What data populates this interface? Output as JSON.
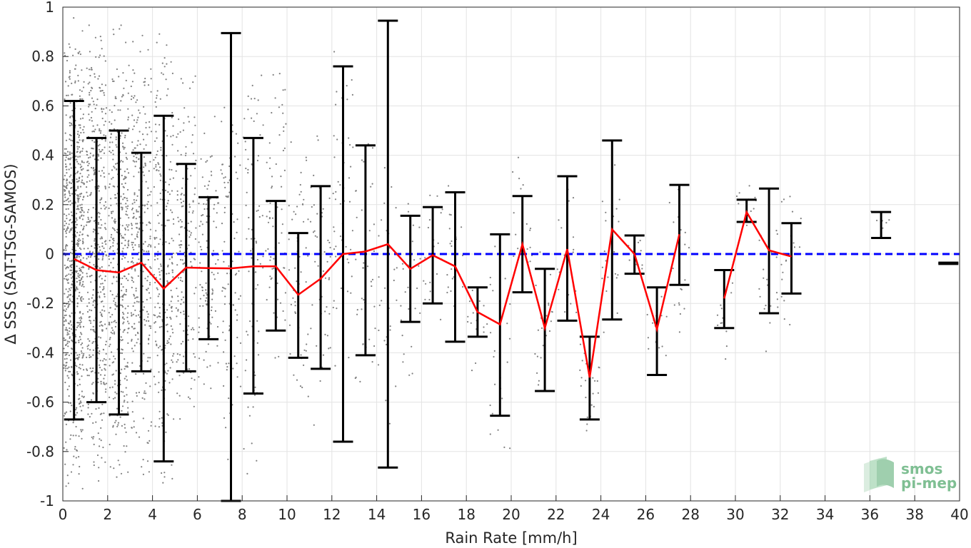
{
  "chart_data": {
    "type": "scatter",
    "xlabel": "Rain Rate [mm/h]",
    "ylabel": "Δ SSS (SAT-TSG-SAMOS)",
    "xlim": [
      0,
      40
    ],
    "ylim": [
      -1,
      1
    ],
    "xticks": [
      0,
      2,
      4,
      6,
      8,
      10,
      12,
      14,
      16,
      18,
      20,
      22,
      24,
      26,
      28,
      30,
      32,
      34,
      36,
      38,
      40
    ],
    "yticks": [
      -1,
      -0.8,
      -0.6,
      -0.4,
      -0.2,
      0,
      0.2,
      0.4,
      0.6,
      0.8,
      1
    ],
    "ytick_labels": [
      "-1",
      "-0.8",
      "-0.6",
      "-0.4",
      "-0.2",
      "0",
      "0.2",
      "0.4",
      "0.6",
      "0.8",
      "1"
    ],
    "grid": true,
    "reference_line": {
      "y": 0,
      "style": "dashed",
      "color": "#0000ff"
    },
    "scatter_color": "#808080",
    "mean_line_color": "#ff0000",
    "errorbar_color": "#000000",
    "mean_series": {
      "x": [
        0.5,
        1.5,
        2.5,
        3.5,
        4.5,
        5.5,
        6.5,
        7.5,
        8.5,
        9.5,
        10.5,
        11.5,
        12.5,
        13.5,
        14.5,
        15.5,
        16.5,
        17.5,
        18.5,
        19.5,
        20.5,
        21.5,
        22.5,
        23.5,
        24.5,
        25.5,
        26.5,
        27.5
      ],
      "y": [
        -0.02,
        -0.065,
        -0.075,
        -0.035,
        -0.14,
        -0.055,
        -0.057,
        -0.058,
        -0.05,
        -0.05,
        -0.165,
        -0.1,
        0.0,
        0.01,
        0.04,
        -0.06,
        -0.005,
        -0.05,
        -0.235,
        -0.285,
        0.04,
        -0.3,
        0.02,
        -0.5,
        0.1,
        0.0,
        -0.305,
        0.08
      ]
    },
    "mean_series_2": {
      "x": [
        29.5,
        30.5,
        31.5,
        32.5
      ],
      "y": [
        -0.18,
        0.17,
        0.015,
        -0.01
      ]
    },
    "errorbars": [
      {
        "x": 0.5,
        "lo": -0.67,
        "hi": 0.62
      },
      {
        "x": 1.5,
        "lo": -0.6,
        "hi": 0.47
      },
      {
        "x": 2.5,
        "lo": -0.65,
        "hi": 0.5
      },
      {
        "x": 3.5,
        "lo": -0.475,
        "hi": 0.41
      },
      {
        "x": 4.5,
        "lo": -0.84,
        "hi": 0.56
      },
      {
        "x": 5.5,
        "lo": -0.475,
        "hi": 0.365
      },
      {
        "x": 6.5,
        "lo": -0.345,
        "hi": 0.23
      },
      {
        "x": 7.5,
        "lo": -1.0,
        "hi": 0.895
      },
      {
        "x": 8.5,
        "lo": -0.565,
        "hi": 0.47
      },
      {
        "x": 9.5,
        "lo": -0.31,
        "hi": 0.215
      },
      {
        "x": 10.5,
        "lo": -0.42,
        "hi": 0.085
      },
      {
        "x": 11.5,
        "lo": -0.465,
        "hi": 0.275
      },
      {
        "x": 12.5,
        "lo": -0.76,
        "hi": 0.76
      },
      {
        "x": 13.5,
        "lo": -0.41,
        "hi": 0.44
      },
      {
        "x": 14.5,
        "lo": -0.865,
        "hi": 0.945
      },
      {
        "x": 15.5,
        "lo": -0.275,
        "hi": 0.155
      },
      {
        "x": 16.5,
        "lo": -0.2,
        "hi": 0.19
      },
      {
        "x": 17.5,
        "lo": -0.355,
        "hi": 0.25
      },
      {
        "x": 18.5,
        "lo": -0.335,
        "hi": -0.135
      },
      {
        "x": 19.5,
        "lo": -0.655,
        "hi": 0.08
      },
      {
        "x": 20.5,
        "lo": -0.155,
        "hi": 0.235
      },
      {
        "x": 21.5,
        "lo": -0.555,
        "hi": -0.06
      },
      {
        "x": 22.5,
        "lo": -0.27,
        "hi": 0.315
      },
      {
        "x": 23.5,
        "lo": -0.67,
        "hi": -0.335
      },
      {
        "x": 24.5,
        "lo": -0.265,
        "hi": 0.46
      },
      {
        "x": 25.5,
        "lo": -0.08,
        "hi": 0.075
      },
      {
        "x": 26.5,
        "lo": -0.49,
        "hi": -0.135
      },
      {
        "x": 27.5,
        "lo": -0.125,
        "hi": 0.28
      },
      {
        "x": 29.5,
        "lo": -0.3,
        "hi": -0.065
      },
      {
        "x": 30.5,
        "lo": 0.13,
        "hi": 0.22
      },
      {
        "x": 31.5,
        "lo": -0.24,
        "hi": 0.265
      },
      {
        "x": 32.5,
        "lo": -0.16,
        "hi": 0.125
      },
      {
        "x": 36.5,
        "lo": 0.065,
        "hi": 0.17
      },
      {
        "x": 39.5,
        "lo": -0.04,
        "hi": -0.035
      }
    ],
    "scatter_columns": [
      {
        "x": 0.5,
        "lo": -1.0,
        "hi": 1.0,
        "n": 700
      },
      {
        "x": 1.5,
        "lo": -1.0,
        "hi": 1.0,
        "n": 450
      },
      {
        "x": 2.5,
        "lo": -1.0,
        "hi": 1.0,
        "n": 400
      },
      {
        "x": 3.5,
        "lo": -0.95,
        "hi": 1.0,
        "n": 300
      },
      {
        "x": 4.5,
        "lo": -1.0,
        "hi": 0.95,
        "n": 250
      },
      {
        "x": 5.5,
        "lo": -0.8,
        "hi": 0.85,
        "n": 160
      },
      {
        "x": 6.5,
        "lo": -0.6,
        "hi": 0.6,
        "n": 110
      },
      {
        "x": 7.5,
        "lo": -1.0,
        "hi": 0.8,
        "n": 90
      },
      {
        "x": 8.5,
        "lo": -0.95,
        "hi": 0.9,
        "n": 80
      },
      {
        "x": 9.5,
        "lo": -0.6,
        "hi": 0.85,
        "n": 70
      },
      {
        "x": 10.5,
        "lo": -0.65,
        "hi": 0.55,
        "n": 55
      },
      {
        "x": 11.5,
        "lo": -0.75,
        "hi": 0.6,
        "n": 50
      },
      {
        "x": 12.5,
        "lo": -0.55,
        "hi": 0.85,
        "n": 50
      },
      {
        "x": 13.5,
        "lo": -0.7,
        "hi": 0.6,
        "n": 40
      },
      {
        "x": 14.5,
        "lo": -0.7,
        "hi": 0.6,
        "n": 30
      },
      {
        "x": 15.5,
        "lo": -0.58,
        "hi": 0.3,
        "n": 25
      },
      {
        "x": 16.5,
        "lo": -0.45,
        "hi": 0.35,
        "n": 20
      },
      {
        "x": 17.5,
        "lo": -0.45,
        "hi": 0.35,
        "n": 20
      },
      {
        "x": 18.5,
        "lo": -0.5,
        "hi": -0.05,
        "n": 15
      },
      {
        "x": 19.5,
        "lo": -0.95,
        "hi": 0.2,
        "n": 22
      },
      {
        "x": 20.5,
        "lo": -0.2,
        "hi": 0.45,
        "n": 18
      },
      {
        "x": 21.5,
        "lo": -0.7,
        "hi": 0.05,
        "n": 22
      },
      {
        "x": 22.5,
        "lo": -0.35,
        "hi": 0.35,
        "n": 20
      },
      {
        "x": 23.5,
        "lo": -0.85,
        "hi": -0.25,
        "n": 25
      },
      {
        "x": 24.5,
        "lo": -0.45,
        "hi": 0.5,
        "n": 22
      },
      {
        "x": 25.5,
        "lo": -0.1,
        "hi": 0.1,
        "n": 12
      },
      {
        "x": 26.5,
        "lo": -0.45,
        "hi": -0.1,
        "n": 15
      },
      {
        "x": 27.5,
        "lo": -0.35,
        "hi": 0.3,
        "n": 20
      },
      {
        "x": 29.5,
        "lo": -0.45,
        "hi": -0.05,
        "n": 14
      },
      {
        "x": 30.5,
        "lo": 0.1,
        "hi": 0.3,
        "n": 12
      },
      {
        "x": 31.5,
        "lo": -0.5,
        "hi": 0.3,
        "n": 20
      },
      {
        "x": 32.5,
        "lo": -0.35,
        "hi": 0.35,
        "n": 20
      },
      {
        "x": 36.5,
        "lo": 0.1,
        "hi": 0.18,
        "n": 6
      }
    ]
  },
  "logo": {
    "line1": "smos",
    "line2": "pi-mep",
    "color": "#7fbf93"
  }
}
